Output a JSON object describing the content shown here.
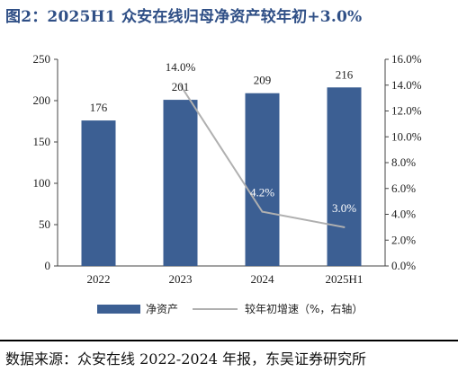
{
  "figure_title": "图2：2025H1 众安在线归母净资产较年初+3.0%",
  "source_note": "数据来源：众安在线 2022-2024 年报，东吴证券研究所",
  "chart_data": {
    "type": "bar",
    "categories": [
      "2022",
      "2023",
      "2024",
      "2025H1"
    ],
    "series": [
      {
        "name": "净资产",
        "type": "bar",
        "axis": "left",
        "values": [
          176,
          201,
          209,
          216
        ],
        "color": "#3c5f93"
      },
      {
        "name": "较年初增速（%，右轴）",
        "type": "line",
        "axis": "right",
        "values": [
          null,
          14.0,
          4.2,
          3.0
        ],
        "color": "#b0b0b0"
      }
    ],
    "bar_labels": [
      "176",
      "201",
      "209",
      "216"
    ],
    "line_labels": [
      null,
      "14.0%",
      "4.2%",
      "3.0%"
    ],
    "left_axis": {
      "ylim": [
        0,
        250
      ],
      "ticks": [
        "0",
        "50",
        "100",
        "150",
        "200",
        "250"
      ]
    },
    "right_axis": {
      "ylim": [
        0,
        16
      ],
      "ticks": [
        "0.0%",
        "2.0%",
        "4.0%",
        "6.0%",
        "8.0%",
        "10.0%",
        "12.0%",
        "14.0%",
        "16.0%"
      ]
    },
    "legend_position": "bottom",
    "grid": false
  }
}
